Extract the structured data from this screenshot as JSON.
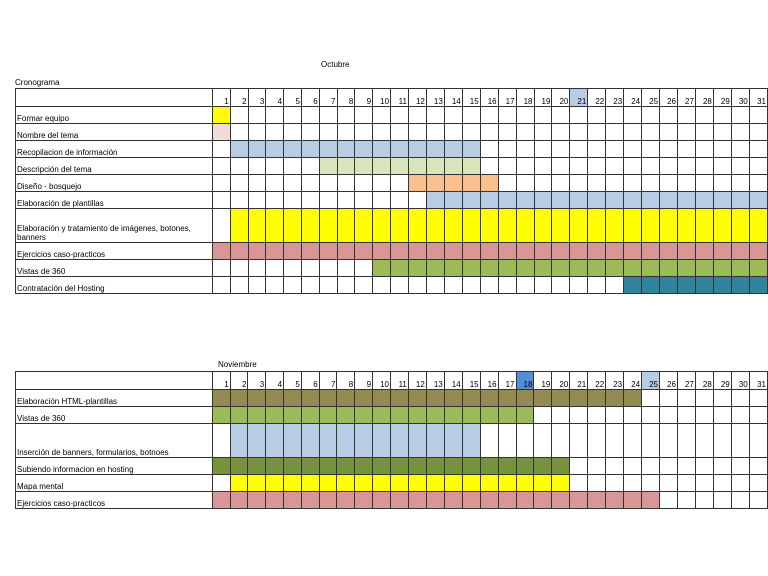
{
  "title": "Cronograma",
  "colors": {
    "yellow": "#ffff00",
    "pink_light": "#f2dcdb",
    "blue_light": "#b8cce4",
    "green_light": "#d7e4bc",
    "orange": "#fabf8f",
    "rose": "#da9694",
    "green": "#9bbb59",
    "teal": "#31849b",
    "olive": "#948a54",
    "green_dark": "#76933c",
    "blue": "#538dd5"
  },
  "months": [
    {
      "name": "Octubre",
      "days": 31,
      "highlight": [
        {
          "day": 21,
          "color": "#b8cce4"
        }
      ],
      "tasks": [
        {
          "label": "Formar equipo",
          "start": 1,
          "end": 1,
          "color": "#ffff00"
        },
        {
          "label": "Nombre del tema",
          "start": 1,
          "end": 1,
          "color": "#f2dcdb"
        },
        {
          "label": "Recopilacion de información",
          "start": 2,
          "end": 15,
          "color": "#b8cce4"
        },
        {
          "label": "Descripción del tema",
          "start": 7,
          "end": 15,
          "color": "#d7e4bc"
        },
        {
          "label": "Diseño - bosquejo",
          "start": 12,
          "end": 16,
          "color": "#fabf8f"
        },
        {
          "label": "Elaboración de plantillas",
          "start": 13,
          "end": 31,
          "color": "#b8cce4"
        },
        {
          "label": "Elaboración y tratamiento de imágenes, botones, banners",
          "start": 2,
          "end": 31,
          "color": "#ffff00",
          "tall": true
        },
        {
          "label": "Ejercicios caso-practicos",
          "start": 1,
          "end": 31,
          "color": "#da9694"
        },
        {
          "label": "Vistas de 360",
          "start": 10,
          "end": 31,
          "color": "#9bbb59"
        },
        {
          "label": "Contratación del Hosting",
          "start": 24,
          "end": 31,
          "color": "#31849b"
        }
      ]
    },
    {
      "name": "Noviembre",
      "days": 31,
      "highlight": [
        {
          "day": 18,
          "color": "#538dd5"
        },
        {
          "day": 25,
          "color": "#b8cce4"
        }
      ],
      "tasks": [
        {
          "label": "Elaboración HTML-plantillas",
          "start": 1,
          "end": 24,
          "color": "#948a54"
        },
        {
          "label": "Vistas de 360",
          "start": 1,
          "end": 18,
          "color": "#9bbb59"
        },
        {
          "label": "Inserción de banners, formularios, botnoes",
          "start": 2,
          "end": 15,
          "color": "#b8cce4",
          "tall": true
        },
        {
          "label": "Subiendo informacion en hosting",
          "start": 1,
          "end": 20,
          "color": "#76933c"
        },
        {
          "label": "Mapa mental",
          "start": 2,
          "end": 20,
          "color": "#ffff00"
        },
        {
          "label": "Ejercicios caso-practicos",
          "start": 1,
          "end": 25,
          "color": "#da9694"
        }
      ]
    }
  ]
}
